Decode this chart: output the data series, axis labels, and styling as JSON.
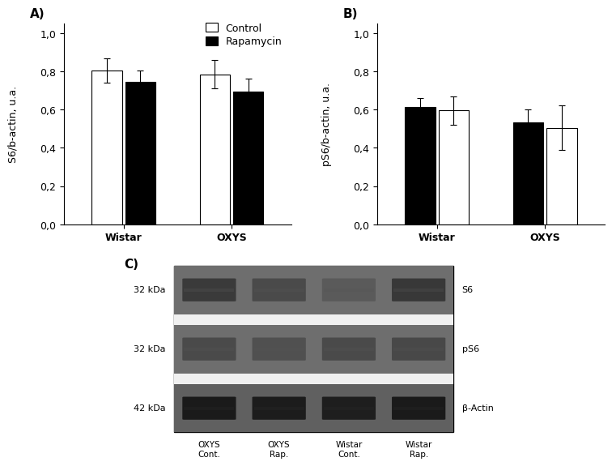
{
  "panel_A": {
    "label": "A)",
    "ylabel": "S6/b-actin, u.a.",
    "groups": [
      "Wistar",
      "OXYS"
    ],
    "control_values": [
      0.805,
      0.785
    ],
    "rapamycin_values": [
      0.745,
      0.695
    ],
    "control_errors": [
      0.065,
      0.075
    ],
    "rapamycin_errors": [
      0.06,
      0.065
    ],
    "ylim": [
      0,
      1.05
    ],
    "yticks": [
      0.0,
      0.2,
      0.4,
      0.6,
      0.8,
      1.0
    ],
    "ytick_labels": [
      "0,0",
      "0,2",
      "0,4",
      "0,6",
      "0,8",
      "1,0"
    ]
  },
  "panel_B": {
    "label": "B)",
    "ylabel": "pS6/b-actin, u.a.",
    "groups": [
      "Wistar",
      "OXYS"
    ],
    "control_values": [
      0.595,
      0.505
    ],
    "rapamycin_values": [
      0.615,
      0.535
    ],
    "control_errors": [
      0.075,
      0.115
    ],
    "rapamycin_errors": [
      0.045,
      0.065
    ],
    "ylim": [
      0,
      1.05
    ],
    "yticks": [
      0.0,
      0.2,
      0.4,
      0.6,
      0.8,
      1.0
    ],
    "ytick_labels": [
      "0,0",
      "0,2",
      "0,4",
      "0,6",
      "0,8",
      "1,0"
    ]
  },
  "legend": {
    "labels": [
      "Control",
      "Rapamycin"
    ],
    "colors": [
      "white",
      "black"
    ]
  },
  "panel_C": {
    "label": "C)",
    "kda_labels": [
      "32 kDa",
      "32 kDa",
      "42 kDa"
    ],
    "band_labels": [
      "S6",
      "pS6",
      "β-Actin"
    ],
    "col_labels": [
      "OXYS\nCont.",
      "OXYS\nRap.",
      "Wistar\nCont.",
      "Wistar\nRap."
    ],
    "n_lanes": 4,
    "bg_color": "#7a7a7a",
    "sep_color": "#e8e8e8",
    "band_row_bg": [
      "#6a6a6a",
      "#6a6a6a",
      "#5a5a5a"
    ],
    "band_colors_s6": [
      "#3a3a3a",
      "#4a4a4a",
      "#5a5a5a",
      "#383838"
    ],
    "band_colors_ps6": [
      "#4a4a4a",
      "#505050",
      "#4a4a4a",
      "#484848"
    ],
    "band_colors_actin": [
      "#1a1a1a",
      "#1c1c1c",
      "#1e1e1e",
      "#1a1a1a"
    ]
  },
  "bar_width": 0.28,
  "bar_color_control": "white",
  "bar_color_rapamycin": "black",
  "bar_edgecolor": "black",
  "background_color": "white",
  "font_size": 9,
  "label_fontsize": 11,
  "tick_fontsize": 9
}
